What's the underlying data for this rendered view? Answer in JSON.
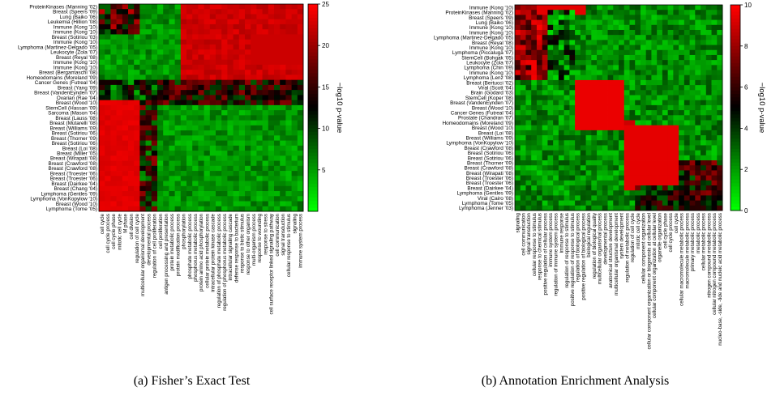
{
  "chart_data": [
    {
      "type": "heatmap",
      "caption": "(a) Fisher’s Exact Test",
      "rows": [
        "ProteinKinases (Manning '02)",
        "Breast (Speers '09)",
        "Lung (Baiko '06)",
        "Leukemia (Hillion '08)",
        "Immune (Kong '10)",
        "Immune (Kong '10)",
        "Breast (Sotiriou '03)",
        "Immune (Kong '10)",
        "Lymphoma (Martinez-Delgado '05)",
        "Leukocyte (Zola '07)",
        "Breast (Reyal '08)",
        "Immune (Kong '10)",
        "Immune (Kong '10)",
        "Breast (Bergamaschi '08)",
        "Homeodomains (Moreland '09)",
        "Cancer Genes (Futreal '04)",
        "Breast (Yang '09)",
        "Breast (VandenEynden '07)",
        "Ovarian (Rae '04)",
        "Breast (Wood '10)",
        "StemCell (Hassan '09)",
        "Sarcoma (Mason '04)",
        "Breast (Lauss '08)",
        "Breast (Mutarelli '08)",
        "Breast (Williams '09)",
        "Breast (Sotiriou '06)",
        "Breast (Thorner '09)",
        "Breast (Sotiriou '06)",
        "Breast (Loi '08)",
        "Breast (Miller '05)",
        "Breast (Wirapati '08)",
        "Breast (Crawford '08)",
        "Breast (Crawford '08)",
        "Breast (Troester '06)",
        "Breast (Troester '06)",
        "Breast (Dairkee '04)",
        "Breast (Chang '04)",
        "Lymphoma (Gentles '09)",
        "Lymphoma (VonKopylow '10)",
        "Breast (Wood '10)",
        "Lymphoma (Tome '05)"
      ],
      "columns": [
        "cell cycle",
        "cell cycle process",
        "cell cycle phase",
        "mitotic cell cycle",
        "M phase",
        "cell division",
        "regulation of cell cycle",
        "multicellular organismal development",
        "developmental process",
        "regulation of cell proliferation",
        "cell proliferation",
        "antigen processing and presentation",
        "protein metabolic process",
        "protein modification process",
        "phosphorylation",
        "phosphate metabolic process",
        "phosphorus metabolic process",
        "protein amino acid phosphorylation",
        "cellular protein metabolic process",
        "intracellular protein kinase cascade",
        "regulation of phosphate metabolic process",
        "regulation of phosphorus metabolic process",
        "intracellular signaling cascade",
        "defense response to bacterium",
        "response to biotic stimulus",
        "response to other organism",
        "multi-organism process",
        "response to wounding",
        "response to stress",
        "cell surface receptor linked signaling pathway",
        "cell communication",
        "signal transduction",
        "cellular response to stimulus",
        "signaling",
        "immune system process"
      ],
      "colorbar": {
        "title": "−log10 p-value",
        "min": 0,
        "max": 25,
        "ticks": [
          5,
          10,
          15,
          20,
          25
        ]
      },
      "colors": {
        "low": "#00ff00",
        "mid": "#000000",
        "high": "#ff0000"
      }
    },
    {
      "type": "heatmap",
      "caption": "(b) Annotation Enrichment Analysis",
      "rows": [
        "Immune (Kong '10)",
        "ProteinKinases (Manning '02)",
        "Breast (Speers '09)",
        "Lung (Baiko '06)",
        "Immune (Kong '10)",
        "Immune (Kong '10)",
        "Lymphoma (Martinez-Delgado '05)",
        "Breast (Reyal '08)",
        "Immune (Kong '10)",
        "Lymphoma (Piccaluga '07)",
        "StemCell (Bohgak '05)",
        "Leukocyte (Zola '07)",
        "Lymphoma (Chin '09)",
        "Immune (Kong '10)",
        "Lymphoma (Lenz '08)",
        "Breast (Bertucci '02)",
        "Viral (Scott '04)",
        "Brain (Godard '03)",
        "StemCell (Koper '08)",
        "Breast (VandenEynden '07)",
        "Breast (Wood '10)",
        "Cancer Genes (Futreal '04)",
        "Prostate (Chandran '07)",
        "Homeodomains (Moreland '09)",
        "Breast (Wood '10)",
        "Breast (Loi '08)",
        "Breast (Williams '09)",
        "Lymphoma (VonKopylow '10)",
        "Breast (Crawford '08)",
        "Breast (Sotiriou '06)",
        "Breast (Sotiriou '06)",
        "Breast (Thorner '09)",
        "Breast (Crawford '08)",
        "Breast (Wirapati '08)",
        "Breast (Troester '06)",
        "Breast (Troester '06)",
        "Breast (Dairkee '04)",
        "Lymphoma (Gentles '09)",
        "Viral (Cairo '08)",
        "Lymphoma (Tome '05)",
        "Lymphoma (Jenner '03)"
      ],
      "columns": [
        "signaling",
        "cell communication",
        "signal transduction",
        "cellular response to stimulus",
        "response to chemical stimulus",
        "positive regulation of cellular process",
        "immune system process",
        "regulation of immune system process",
        "immune response",
        "regulation of response to stimulus",
        "positive regulation of response to stimulus",
        "regulation of biological process",
        "positive regulation of biological process",
        "biological regulation",
        "regulation of biological quality",
        "multicellular organismal process",
        "developmental process",
        "anatomical structure development",
        "multicellular organismal development",
        "system development",
        "regulation of metabolic process",
        "regulation of cell cycle",
        "mitotic cell cycle",
        "cellular component organization",
        "cellular component organization or biogenesis at cellular level",
        "cellular component organization at cellular level",
        "organelle organization",
        "cell cycle phase",
        "cell cycle process",
        "cell cycle",
        "cellular macromolecule metabolic process",
        "macromolecule metabolic process",
        "primary metabolic process",
        "metabolic process",
        "cellular metabolic process",
        "nitrogen compound metabolic process",
        "cellular nitrogen compound metabolic process",
        "nucleo-base, -side, -tide and nucleic acid metabolic process"
      ],
      "colorbar": {
        "title": "−log10 p-value",
        "min": 0,
        "max": 10,
        "ticks": [
          0,
          2,
          4,
          6,
          8,
          10
        ]
      },
      "colors": {
        "low": "#00ff00",
        "mid": "#000000",
        "high": "#ff0000"
      }
    }
  ]
}
